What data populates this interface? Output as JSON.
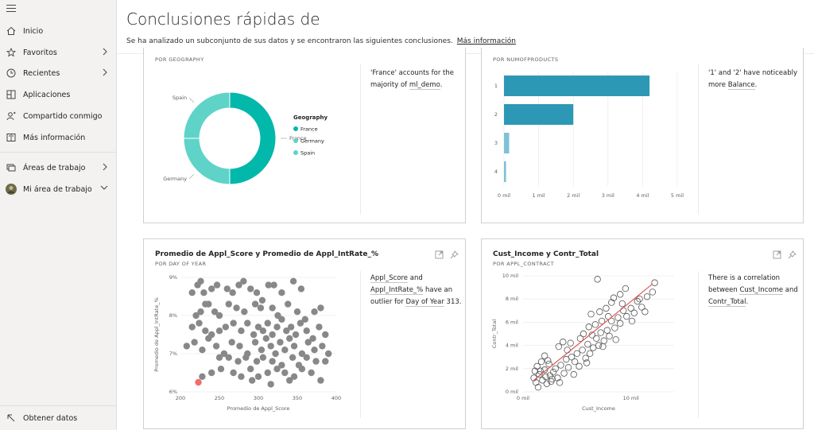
{
  "sidebar": {
    "items": [
      {
        "label": "Inicio",
        "icon": "home-icon"
      },
      {
        "label": "Favoritos",
        "icon": "star-icon"
      },
      {
        "label": "Recientes",
        "icon": "clock-icon"
      },
      {
        "label": "Aplicaciones",
        "icon": "apps-icon"
      },
      {
        "label": "Compartido conmigo",
        "icon": "share-icon"
      },
      {
        "label": "Más información",
        "icon": "book-icon"
      },
      {
        "label": "Áreas de trabajo",
        "icon": "workspaces-icon"
      },
      {
        "label": "Mi área de trabajo",
        "icon": "avatar"
      }
    ],
    "footer": {
      "label": "Obtener datos",
      "icon": "arrow-up-left-icon"
    }
  },
  "header": {
    "title": "Conclusiones rápidas de",
    "subtitle": "Se ha analizado un subconjunto de sus datos y se encontraron las siguientes conclusiones.",
    "link": "Más información"
  },
  "cards": [
    {
      "subtitle": "POR GEOGRAPHY",
      "insight": {
        "p1": "'France' accounts for the majority of ",
        "k1": "ml_demo",
        "p2": "."
      }
    },
    {
      "subtitle": "POR NUMOFPRODUCTS",
      "insight": {
        "p1": "'1' and '2' have noticeably more ",
        "k1": "Balance",
        "p2": "."
      }
    },
    {
      "title": "Promedio de Appl_Score y Promedio de Appl_IntRate_%",
      "subtitle": "POR DAY OF YEAR",
      "insight": {
        "k1": "Appl_Score",
        "p1": " and ",
        "k2": "Appl_IntRate_%",
        "p2": " have an outlier for ",
        "k3": "Day of Year",
        "p3": " 313."
      }
    },
    {
      "title": "Cust_Income y Contr_Total",
      "subtitle": "POR APPL_CONTRACT",
      "insight": {
        "p1": "There is a correlation between ",
        "k1": "Cust_Income",
        "p2": " and ",
        "k2": "Contr_Total",
        "p3": "."
      }
    }
  ],
  "chart_data": [
    {
      "type": "pie",
      "variant": "donut",
      "categories": [
        "France",
        "Germany",
        "Spain"
      ],
      "values": [
        50,
        25,
        25
      ],
      "legend_title": "Geography",
      "legend_position": "right",
      "colors": [
        "#01b8aa",
        "#5fd3c7",
        "#5fd3c7"
      ]
    },
    {
      "type": "bar",
      "orientation": "horizontal",
      "categories": [
        "1",
        "2",
        "3",
        "4"
      ],
      "values": [
        4200,
        2000,
        150,
        60
      ],
      "xlim": [
        0,
        5000
      ],
      "xticks": [
        "0 mil",
        "1 mil",
        "2 mil",
        "3 mil",
        "4 mil",
        "5 mil"
      ],
      "colors": [
        "#2d98b5",
        "#2d98b5",
        "#7fc1d6",
        "#7fc1d6"
      ],
      "grid": true
    },
    {
      "type": "scatter",
      "xlabel": "Promedio de Appl_Score",
      "ylabel": "Promedio de Appl_IntRate_%",
      "xlim": [
        200,
        400
      ],
      "ylim": [
        6,
        9
      ],
      "xticks": [
        "200",
        "250",
        "300",
        "350",
        "400"
      ],
      "yticks": [
        "6%",
        "7%",
        "8%",
        "9%"
      ],
      "color": "#888888",
      "outlier": {
        "x": 223,
        "y": 6.25,
        "color": "#f16d6d"
      },
      "grid": true,
      "points": [
        [
          215,
          8.6
        ],
        [
          222,
          8.8
        ],
        [
          226,
          8.9
        ],
        [
          230,
          8.6
        ],
        [
          236,
          8.3
        ],
        [
          240,
          8.7
        ],
        [
          247,
          8.8
        ],
        [
          220,
          8.0
        ],
        [
          226,
          8.1
        ],
        [
          232,
          8.3
        ],
        [
          244,
          8.1
        ],
        [
          250,
          8.0
        ],
        [
          260,
          8.7
        ],
        [
          267,
          8.6
        ],
        [
          275,
          8.8
        ],
        [
          281,
          8.9
        ],
        [
          290,
          8.7
        ],
        [
          298,
          8.6
        ],
        [
          305,
          8.4
        ],
        [
          313,
          8.8
        ],
        [
          320,
          8.8
        ],
        [
          330,
          8.6
        ],
        [
          345,
          8.9
        ],
        [
          355,
          8.7
        ],
        [
          262,
          8.3
        ],
        [
          272,
          8.2
        ],
        [
          282,
          8.1
        ],
        [
          296,
          8.3
        ],
        [
          303,
          8.2
        ],
        [
          318,
          8.2
        ],
        [
          325,
          8.0
        ],
        [
          338,
          8.3
        ],
        [
          350,
          8.1
        ],
        [
          360,
          7.9
        ],
        [
          372,
          8.1
        ],
        [
          380,
          8.2
        ],
        [
          215,
          7.7
        ],
        [
          224,
          7.8
        ],
        [
          232,
          7.6
        ],
        [
          240,
          7.5
        ],
        [
          250,
          7.6
        ],
        [
          258,
          7.7
        ],
        [
          268,
          7.8
        ],
        [
          278,
          7.6
        ],
        [
          286,
          7.8
        ],
        [
          294,
          7.5
        ],
        [
          300,
          7.7
        ],
        [
          306,
          7.6
        ],
        [
          312,
          7.8
        ],
        [
          318,
          7.5
        ],
        [
          324,
          7.7
        ],
        [
          330,
          7.9
        ],
        [
          336,
          7.6
        ],
        [
          342,
          7.7
        ],
        [
          348,
          7.5
        ],
        [
          354,
          7.8
        ],
        [
          362,
          7.6
        ],
        [
          370,
          7.4
        ],
        [
          378,
          7.7
        ],
        [
          386,
          7.5
        ],
        [
          208,
          7.2
        ],
        [
          218,
          7.3
        ],
        [
          228,
          7.1
        ],
        [
          236,
          7.4
        ],
        [
          246,
          7.2
        ],
        [
          256,
          7.0
        ],
        [
          266,
          7.3
        ],
        [
          276,
          7.2
        ],
        [
          286,
          7.0
        ],
        [
          296,
          7.3
        ],
        [
          304,
          7.1
        ],
        [
          310,
          7.4
        ],
        [
          316,
          7.2
        ],
        [
          322,
          7.0
        ],
        [
          328,
          7.3
        ],
        [
          334,
          7.1
        ],
        [
          340,
          7.4
        ],
        [
          346,
          7.2
        ],
        [
          356,
          7.0
        ],
        [
          364,
          7.3
        ],
        [
          372,
          7.1
        ],
        [
          382,
          7.2
        ],
        [
          390,
          7.0
        ],
        [
          250,
          6.9
        ],
        [
          262,
          6.9
        ],
        [
          274,
          6.8
        ],
        [
          284,
          6.9
        ],
        [
          298,
          6.8
        ],
        [
          306,
          6.9
        ],
        [
          318,
          6.8
        ],
        [
          330,
          6.7
        ],
        [
          344,
          6.9
        ],
        [
          352,
          6.7
        ],
        [
          362,
          6.9
        ],
        [
          374,
          6.8
        ],
        [
          386,
          6.8
        ],
        [
          240,
          6.5
        ],
        [
          252,
          6.6
        ],
        [
          268,
          6.5
        ],
        [
          278,
          6.4
        ],
        [
          290,
          6.6
        ],
        [
          300,
          6.4
        ],
        [
          312,
          6.5
        ],
        [
          324,
          6.6
        ],
        [
          334,
          6.5
        ],
        [
          346,
          6.4
        ],
        [
          356,
          6.6
        ],
        [
          368,
          6.5
        ],
        [
          380,
          6.3
        ],
        [
          228,
          6.4
        ],
        [
          292,
          6.3
        ],
        [
          316,
          6.2
        ],
        [
          340,
          6.3
        ]
      ]
    },
    {
      "type": "scatter",
      "xlabel": "Cust_Income",
      "ylabel": "Contr_Total",
      "xlim": [
        0,
        14000
      ],
      "ylim": [
        0,
        10000
      ],
      "xticks": [
        "0 mil",
        "10 mil"
      ],
      "yticks": [
        "0 mil",
        "2 mil",
        "4 mil",
        "6 mil",
        "8 mil",
        "10 mil"
      ],
      "trendline": {
        "from": [
          1000,
          1000
        ],
        "to": [
          12000,
          9300
        ],
        "color": "#e05a5a"
      },
      "marker": "hollow-circle",
      "grid": true,
      "points": [
        [
          1000,
          1200
        ],
        [
          1200,
          800
        ],
        [
          1500,
          1500
        ],
        [
          1800,
          1000
        ],
        [
          2000,
          1900
        ],
        [
          2200,
          700
        ],
        [
          2500,
          1400
        ],
        [
          2700,
          1100
        ],
        [
          3000,
          2000
        ],
        [
          1300,
          2200
        ],
        [
          1600,
          1800
        ],
        [
          2100,
          1300
        ],
        [
          2400,
          2400
        ],
        [
          2800,
          1700
        ],
        [
          3200,
          1200
        ],
        [
          3500,
          2300
        ],
        [
          3800,
          1600
        ],
        [
          4000,
          2800
        ],
        [
          4200,
          2100
        ],
        [
          4500,
          3000
        ],
        [
          4800,
          2600
        ],
        [
          5000,
          3300
        ],
        [
          5200,
          2200
        ],
        [
          5500,
          3600
        ],
        [
          5800,
          2900
        ],
        [
          6000,
          4100
        ],
        [
          6200,
          3300
        ],
        [
          6500,
          3800
        ],
        [
          6800,
          4600
        ],
        [
          7000,
          4000
        ],
        [
          7200,
          5100
        ],
        [
          7500,
          4400
        ],
        [
          7800,
          5300
        ],
        [
          8000,
          4800
        ],
        [
          8200,
          6100
        ],
        [
          8500,
          5500
        ],
        [
          8800,
          6400
        ],
        [
          9000,
          5900
        ],
        [
          9300,
          7000
        ],
        [
          9600,
          6500
        ],
        [
          10000,
          7200
        ],
        [
          10300,
          6800
        ],
        [
          10600,
          7800
        ],
        [
          11000,
          7300
        ],
        [
          11500,
          8200
        ],
        [
          12000,
          8600
        ],
        [
          12200,
          9400
        ],
        [
          5600,
          5000
        ],
        [
          6300,
          6700
        ],
        [
          6700,
          5800
        ],
        [
          7300,
          6100
        ],
        [
          7700,
          7200
        ],
        [
          8200,
          7700
        ],
        [
          8400,
          8100
        ],
        [
          9000,
          8400
        ],
        [
          9500,
          8900
        ],
        [
          6900,
          9700
        ],
        [
          3300,
          3900
        ],
        [
          3700,
          4300
        ],
        [
          4100,
          3600
        ],
        [
          2000,
          3100
        ],
        [
          2300,
          2700
        ],
        [
          1100,
          1800
        ],
        [
          1400,
          400
        ],
        [
          1700,
          2600
        ],
        [
          2600,
          900
        ],
        [
          3400,
          800
        ],
        [
          4400,
          4200
        ],
        [
          4700,
          1500
        ],
        [
          5300,
          4600
        ],
        [
          5900,
          2500
        ],
        [
          6100,
          5600
        ],
        [
          6400,
          4900
        ],
        [
          7100,
          6900
        ],
        [
          7400,
          3900
        ],
        [
          7900,
          6500
        ],
        [
          8600,
          4500
        ],
        [
          9200,
          7600
        ],
        [
          10100,
          6100
        ],
        [
          10800,
          8000
        ],
        [
          11300,
          6900
        ]
      ]
    }
  ]
}
